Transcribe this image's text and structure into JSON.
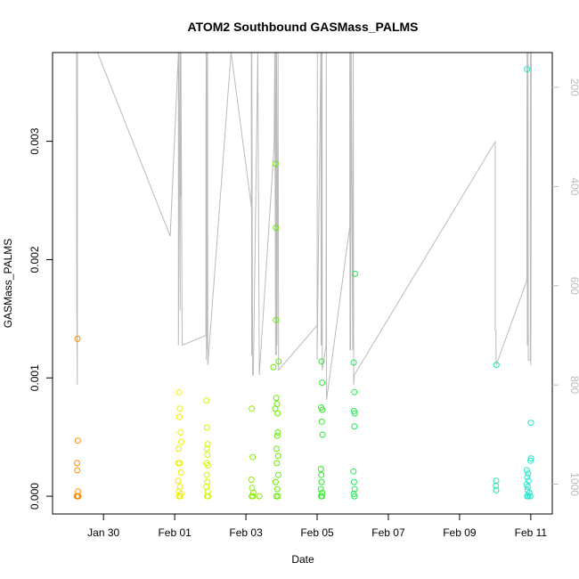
{
  "chart_data": {
    "type": "scatter",
    "title": "ATOM2 Southbound GASMass_PALMS",
    "xlabel": "Date",
    "ylabel": "GASMass_PALMS",
    "x_axis": {
      "min": "2017-01-28T13:40",
      "max": "2017-02-11T14:30",
      "ticks": [
        {
          "date": "2017-01-30",
          "label": "Jan 30"
        },
        {
          "date": "2017-02-01",
          "label": "Feb 01"
        },
        {
          "date": "2017-02-03",
          "label": "Feb 03"
        },
        {
          "date": "2017-02-05",
          "label": "Feb 05"
        },
        {
          "date": "2017-02-07",
          "label": "Feb 07"
        },
        {
          "date": "2017-02-09",
          "label": "Feb 09"
        },
        {
          "date": "2017-02-11",
          "label": "Feb 11"
        }
      ]
    },
    "y_axis": {
      "min": -0.00015,
      "max": 0.00375,
      "ticks": [
        0,
        0.001,
        0.002,
        0.003
      ],
      "tick_labels": [
        "0.000",
        "0.001",
        "0.002",
        "0.003"
      ]
    },
    "y2_axis": {
      "label_color": "#bbbbbb",
      "reversed": true,
      "min": 130,
      "max": 1060,
      "ticks": [
        200,
        400,
        600,
        800,
        1000
      ],
      "tick_labels": [
        "200",
        "400",
        "600",
        "800",
        "1000"
      ],
      "line_color": "#bbbbbb"
    },
    "grid": false,
    "points": [
      {
        "x": "2017-01-29T06:30",
        "y": 0.00133,
        "color": "#ff8c00"
      },
      {
        "x": "2017-01-29T06:40",
        "y": 0.00047,
        "color": "#ff8c00"
      },
      {
        "x": "2017-01-29T06:10",
        "y": 0.00028,
        "color": "#ff8c00"
      },
      {
        "x": "2017-01-29T06:20",
        "y": 0.00022,
        "color": "#ff8c00"
      },
      {
        "x": "2017-01-29T06:50",
        "y": 4e-05,
        "color": "#ff8c00"
      },
      {
        "x": "2017-01-29T06:00",
        "y": 0.0,
        "color": "#ff8c00"
      },
      {
        "x": "2017-01-29T06:30",
        "y": 0.0,
        "color": "#ff8c00"
      },
      {
        "x": "2017-01-29T07:00",
        "y": 0.0,
        "color": "#ff8c00"
      },
      {
        "x": "2017-02-01T03:00",
        "y": 0.00088,
        "color": "#eeee00"
      },
      {
        "x": "2017-02-01T03:30",
        "y": 0.00074,
        "color": "#eeee00"
      },
      {
        "x": "2017-02-01T03:10",
        "y": 0.00067,
        "color": "#eeee00"
      },
      {
        "x": "2017-02-01T04:00",
        "y": 0.00054,
        "color": "#eeee00"
      },
      {
        "x": "2017-02-01T02:40",
        "y": 0.0004,
        "color": "#eeee00"
      },
      {
        "x": "2017-02-01T04:30",
        "y": 0.00046,
        "color": "#eeee00"
      },
      {
        "x": "2017-02-01T03:20",
        "y": 0.00028,
        "color": "#eeee00"
      },
      {
        "x": "2017-02-01T02:30",
        "y": 0.00028,
        "color": "#eeee00"
      },
      {
        "x": "2017-02-01T04:10",
        "y": 0.0002,
        "color": "#eeee00"
      },
      {
        "x": "2017-02-01T02:20",
        "y": 0.00013,
        "color": "#eeee00"
      },
      {
        "x": "2017-02-01T03:40",
        "y": 8e-05,
        "color": "#eeee00"
      },
      {
        "x": "2017-02-01T02:50",
        "y": 4e-05,
        "color": "#eeee00"
      },
      {
        "x": "2017-02-01T04:20",
        "y": 2e-05,
        "color": "#eeee00"
      },
      {
        "x": "2017-02-01T03:00",
        "y": 0.0,
        "color": "#eeee00"
      },
      {
        "x": "2017-02-01T03:50",
        "y": 0.0,
        "color": "#eeee00"
      },
      {
        "x": "2017-02-01T21:30",
        "y": 0.00081,
        "color": "#d4f500"
      },
      {
        "x": "2017-02-01T21:50",
        "y": 0.00058,
        "color": "#d4f500"
      },
      {
        "x": "2017-02-01T22:10",
        "y": 0.00044,
        "color": "#d4f500"
      },
      {
        "x": "2017-02-01T21:40",
        "y": 0.0004,
        "color": "#d4f500"
      },
      {
        "x": "2017-02-01T22:00",
        "y": 0.00035,
        "color": "#d4f500"
      },
      {
        "x": "2017-02-01T21:20",
        "y": 0.00028,
        "color": "#d4f500"
      },
      {
        "x": "2017-02-01T22:20",
        "y": 0.00026,
        "color": "#d4f500"
      },
      {
        "x": "2017-02-01T21:40",
        "y": 0.00018,
        "color": "#d4f500"
      },
      {
        "x": "2017-02-01T22:00",
        "y": 0.00012,
        "color": "#d4f500"
      },
      {
        "x": "2017-02-01T21:20",
        "y": 8e-05,
        "color": "#d4f500"
      },
      {
        "x": "2017-02-01T22:20",
        "y": 4e-05,
        "color": "#d4f500"
      },
      {
        "x": "2017-02-01T21:50",
        "y": 0.0,
        "color": "#d4f500"
      },
      {
        "x": "2017-02-01T22:30",
        "y": 0.0,
        "color": "#d4f500"
      },
      {
        "x": "2017-02-03T04:00",
        "y": 0.00074,
        "color": "#88f000"
      },
      {
        "x": "2017-02-03T04:30",
        "y": 0.00033,
        "color": "#88f000"
      },
      {
        "x": "2017-02-03T03:40",
        "y": 0.00014,
        "color": "#88f000"
      },
      {
        "x": "2017-02-03T04:10",
        "y": 7e-05,
        "color": "#88f000"
      },
      {
        "x": "2017-02-03T05:00",
        "y": 3e-05,
        "color": "#88f000"
      },
      {
        "x": "2017-02-03T03:50",
        "y": 0.0,
        "color": "#88f000"
      },
      {
        "x": "2017-02-03T04:40",
        "y": 0.0,
        "color": "#88f000"
      },
      {
        "x": "2017-02-03T09:00",
        "y": 0.0,
        "color": "#88f000"
      },
      {
        "x": "2017-02-03T20:00",
        "y": 0.00281,
        "color": "#66ee00"
      },
      {
        "x": "2017-02-03T20:10",
        "y": 0.00227,
        "color": "#66ee00"
      },
      {
        "x": "2017-02-03T20:20",
        "y": 0.00149,
        "color": "#66ee00"
      },
      {
        "x": "2017-02-03T22:00",
        "y": 0.00114,
        "color": "#66ee00"
      },
      {
        "x": "2017-02-03T18:30",
        "y": 0.00109,
        "color": "#66ee00"
      },
      {
        "x": "2017-02-03T20:30",
        "y": 0.00083,
        "color": "#66ee00"
      },
      {
        "x": "2017-02-03T21:00",
        "y": 0.00078,
        "color": "#66ee00"
      },
      {
        "x": "2017-02-03T19:50",
        "y": 0.00074,
        "color": "#66ee00"
      },
      {
        "x": "2017-02-03T21:20",
        "y": 0.0007,
        "color": "#66ee00"
      },
      {
        "x": "2017-02-03T21:30",
        "y": 0.00054,
        "color": "#66ee00"
      },
      {
        "x": "2017-02-03T21:10",
        "y": 0.00051,
        "color": "#66ee00"
      },
      {
        "x": "2017-02-03T20:40",
        "y": 0.0004,
        "color": "#66ee00"
      },
      {
        "x": "2017-02-03T21:40",
        "y": 0.00034,
        "color": "#66ee00"
      },
      {
        "x": "2017-02-03T20:50",
        "y": 0.00028,
        "color": "#66ee00"
      },
      {
        "x": "2017-02-03T21:50",
        "y": 0.00018,
        "color": "#66ee00"
      },
      {
        "x": "2017-02-03T20:00",
        "y": 0.00012,
        "color": "#66ee00"
      },
      {
        "x": "2017-02-03T21:10",
        "y": 6e-05,
        "color": "#66ee00"
      },
      {
        "x": "2017-02-03T20:30",
        "y": 0.0,
        "color": "#66ee00"
      },
      {
        "x": "2017-02-03T21:30",
        "y": 0.0,
        "color": "#66ee00"
      },
      {
        "x": "2017-02-05T03:00",
        "y": 0.00114,
        "color": "#2ee82e"
      },
      {
        "x": "2017-02-05T03:20",
        "y": 0.00096,
        "color": "#2ee82e"
      },
      {
        "x": "2017-02-05T02:40",
        "y": 0.00075,
        "color": "#2ee82e"
      },
      {
        "x": "2017-02-05T03:30",
        "y": 0.00073,
        "color": "#2ee82e"
      },
      {
        "x": "2017-02-05T03:10",
        "y": 0.00063,
        "color": "#2ee82e"
      },
      {
        "x": "2017-02-05T03:40",
        "y": 0.00052,
        "color": "#2ee82e"
      },
      {
        "x": "2017-02-05T02:30",
        "y": 0.00023,
        "color": "#2ee82e"
      },
      {
        "x": "2017-02-05T02:50",
        "y": 0.00018,
        "color": "#2ee82e"
      },
      {
        "x": "2017-02-05T03:00",
        "y": 0.00012,
        "color": "#2ee82e"
      },
      {
        "x": "2017-02-05T02:30",
        "y": 6e-05,
        "color": "#2ee82e"
      },
      {
        "x": "2017-02-05T03:20",
        "y": 3e-05,
        "color": "#2ee82e"
      },
      {
        "x": "2017-02-05T02:40",
        "y": 0.0,
        "color": "#2ee82e"
      },
      {
        "x": "2017-02-05T03:10",
        "y": 0.0,
        "color": "#2ee82e"
      },
      {
        "x": "2017-02-06T01:30",
        "y": 0.00188,
        "color": "#22e855"
      },
      {
        "x": "2017-02-06T00:40",
        "y": 0.00113,
        "color": "#22e855"
      },
      {
        "x": "2017-02-06T01:00",
        "y": 0.00088,
        "color": "#22e855"
      },
      {
        "x": "2017-02-06T00:50",
        "y": 0.00072,
        "color": "#22e855"
      },
      {
        "x": "2017-02-06T01:20",
        "y": 0.0007,
        "color": "#22e855"
      },
      {
        "x": "2017-02-06T01:10",
        "y": 0.00059,
        "color": "#22e855"
      },
      {
        "x": "2017-02-06T00:30",
        "y": 0.00021,
        "color": "#22e855"
      },
      {
        "x": "2017-02-06T00:50",
        "y": 0.00012,
        "color": "#22e855"
      },
      {
        "x": "2017-02-06T01:20",
        "y": 6e-05,
        "color": "#22e855"
      },
      {
        "x": "2017-02-06T00:40",
        "y": 2e-05,
        "color": "#22e855"
      },
      {
        "x": "2017-02-06T01:10",
        "y": 0.0,
        "color": "#22e855"
      },
      {
        "x": "2017-02-10T00:50",
        "y": 0.00111,
        "color": "#22e8a0"
      },
      {
        "x": "2017-02-10T00:40",
        "y": 0.00013,
        "color": "#22e8a0"
      },
      {
        "x": "2017-02-10T00:30",
        "y": 9e-05,
        "color": "#22e8a0"
      },
      {
        "x": "2017-02-10T00:40",
        "y": 5e-05,
        "color": "#22e8a0"
      },
      {
        "x": "2017-02-10T21:30",
        "y": 0.00361,
        "color": "#22e8c8"
      },
      {
        "x": "2017-02-11T00:00",
        "y": 0.00062,
        "color": "#22e8c8"
      },
      {
        "x": "2017-02-11T00:10",
        "y": 0.00032,
        "color": "#22e8c8"
      },
      {
        "x": "2017-02-10T23:50",
        "y": 0.0003,
        "color": "#22e8c8"
      },
      {
        "x": "2017-02-10T21:20",
        "y": 0.00022,
        "color": "#22e8c8"
      },
      {
        "x": "2017-02-10T22:10",
        "y": 0.00019,
        "color": "#22e8c8"
      },
      {
        "x": "2017-02-10T21:40",
        "y": 0.00016,
        "color": "#22e8c8"
      },
      {
        "x": "2017-02-10T22:30",
        "y": 0.00013,
        "color": "#22e8c8"
      },
      {
        "x": "2017-02-10T21:10",
        "y": 0.0001,
        "color": "#22e8c8"
      },
      {
        "x": "2017-02-10T22:00",
        "y": 8e-05,
        "color": "#22e8c8"
      },
      {
        "x": "2017-02-10T21:50",
        "y": 5e-05,
        "color": "#22e8c8"
      },
      {
        "x": "2017-02-10T23:00",
        "y": 3e-05,
        "color": "#22e8c8"
      },
      {
        "x": "2017-02-10T21:30",
        "y": 0.0,
        "color": "#22e8c8"
      },
      {
        "x": "2017-02-10T22:20",
        "y": 0.0,
        "color": "#22e8c8"
      },
      {
        "x": "2017-02-10T23:40",
        "y": 0.0,
        "color": "#22e8c8"
      }
    ],
    "pressure_path": [
      [
        "2017-01-29T05:50",
        130
      ],
      [
        "2017-01-29T06:00",
        640
      ],
      [
        "2017-01-29T06:20",
        800
      ],
      [
        "2017-01-29T06:30",
        130
      ],
      [
        "2017-01-29T20:00",
        130
      ],
      [
        "2017-01-31T21:00",
        500
      ],
      [
        "2017-02-01T02:30",
        130
      ],
      [
        "2017-02-01T02:30",
        720
      ],
      [
        "2017-02-01T03:00",
        130
      ],
      [
        "2017-02-01T03:40",
        650
      ],
      [
        "2017-02-01T03:50",
        130
      ],
      [
        "2017-02-01T04:00",
        420
      ],
      [
        "2017-02-01T04:10",
        130
      ],
      [
        "2017-02-01T05:00",
        720
      ],
      [
        "2017-02-01T21:00",
        700
      ],
      [
        "2017-02-01T21:10",
        130
      ],
      [
        "2017-02-01T21:20",
        750
      ],
      [
        "2017-02-01T21:30",
        130
      ],
      [
        "2017-02-01T22:00",
        730
      ],
      [
        "2017-02-01T22:10",
        130
      ],
      [
        "2017-02-01T22:20",
        760
      ],
      [
        "2017-02-02T14:00",
        130
      ],
      [
        "2017-02-03T03:40",
        440
      ],
      [
        "2017-02-03T03:40",
        130
      ],
      [
        "2017-02-03T03:50",
        640
      ],
      [
        "2017-02-03T03:50",
        740
      ],
      [
        "2017-02-03T04:00",
        130
      ],
      [
        "2017-02-03T04:30",
        780
      ],
      [
        "2017-02-03T05:00",
        780
      ],
      [
        "2017-02-03T08:00",
        130
      ],
      [
        "2017-02-03T08:00",
        130
      ],
      [
        "2017-02-03T09:00",
        780
      ],
      [
        "2017-02-03T19:00",
        320
      ],
      [
        "2017-02-03T19:30",
        130
      ],
      [
        "2017-02-03T20:00",
        740
      ],
      [
        "2017-02-03T20:10",
        130
      ],
      [
        "2017-02-03T20:30",
        740
      ],
      [
        "2017-02-03T20:40",
        130
      ],
      [
        "2017-02-03T21:00",
        720
      ],
      [
        "2017-02-03T21:40",
        130
      ],
      [
        "2017-02-03T22:00",
        740
      ],
      [
        "2017-02-03T22:00",
        770
      ],
      [
        "2017-02-05T00:00",
        680
      ],
      [
        "2017-02-05T00:10",
        130
      ],
      [
        "2017-02-05T00:00",
        750
      ],
      [
        "2017-02-05T02:30",
        130
      ],
      [
        "2017-02-05T02:40",
        720
      ],
      [
        "2017-02-05T02:50",
        130
      ],
      [
        "2017-02-05T03:10",
        720
      ],
      [
        "2017-02-05T03:20",
        130
      ],
      [
        "2017-02-05T03:30",
        770
      ],
      [
        "2017-02-05T06:00",
        720
      ],
      [
        "2017-02-05T06:10",
        130
      ],
      [
        "2017-02-05T06:20",
        830
      ],
      [
        "2017-02-05T22:00",
        480
      ],
      [
        "2017-02-05T22:00",
        130
      ],
      [
        "2017-02-05T22:10",
        730
      ],
      [
        "2017-02-05T22:20",
        130
      ],
      [
        "2017-02-05T22:30",
        730
      ],
      [
        "2017-02-05T23:00",
        130
      ],
      [
        "2017-02-06T00:00",
        730
      ],
      [
        "2017-02-06T00:00",
        700
      ],
      [
        "2017-02-06T00:20",
        130
      ],
      [
        "2017-02-06T00:40",
        800
      ],
      [
        "2017-02-06T01:00",
        780
      ],
      [
        "2017-02-10T00:00",
        310
      ],
      [
        "2017-02-10T00:00",
        690
      ],
      [
        "2017-02-10T00:30",
        690
      ],
      [
        "2017-02-10T00:40",
        760
      ],
      [
        "2017-02-10T21:20",
        590
      ],
      [
        "2017-02-10T21:30",
        130
      ],
      [
        "2017-02-10T21:40",
        720
      ],
      [
        "2017-02-10T22:00",
        720
      ],
      [
        "2017-02-10T22:10",
        130
      ],
      [
        "2017-02-10T22:20",
        750
      ],
      [
        "2017-02-10T23:40",
        750
      ],
      [
        "2017-02-10T23:50",
        130
      ],
      [
        "2017-02-11T00:00",
        760
      ],
      [
        "2017-02-11T00:00",
        700
      ],
      [
        "2017-02-11T00:10",
        700
      ],
      [
        "2017-02-11T00:20",
        130
      ]
    ]
  }
}
